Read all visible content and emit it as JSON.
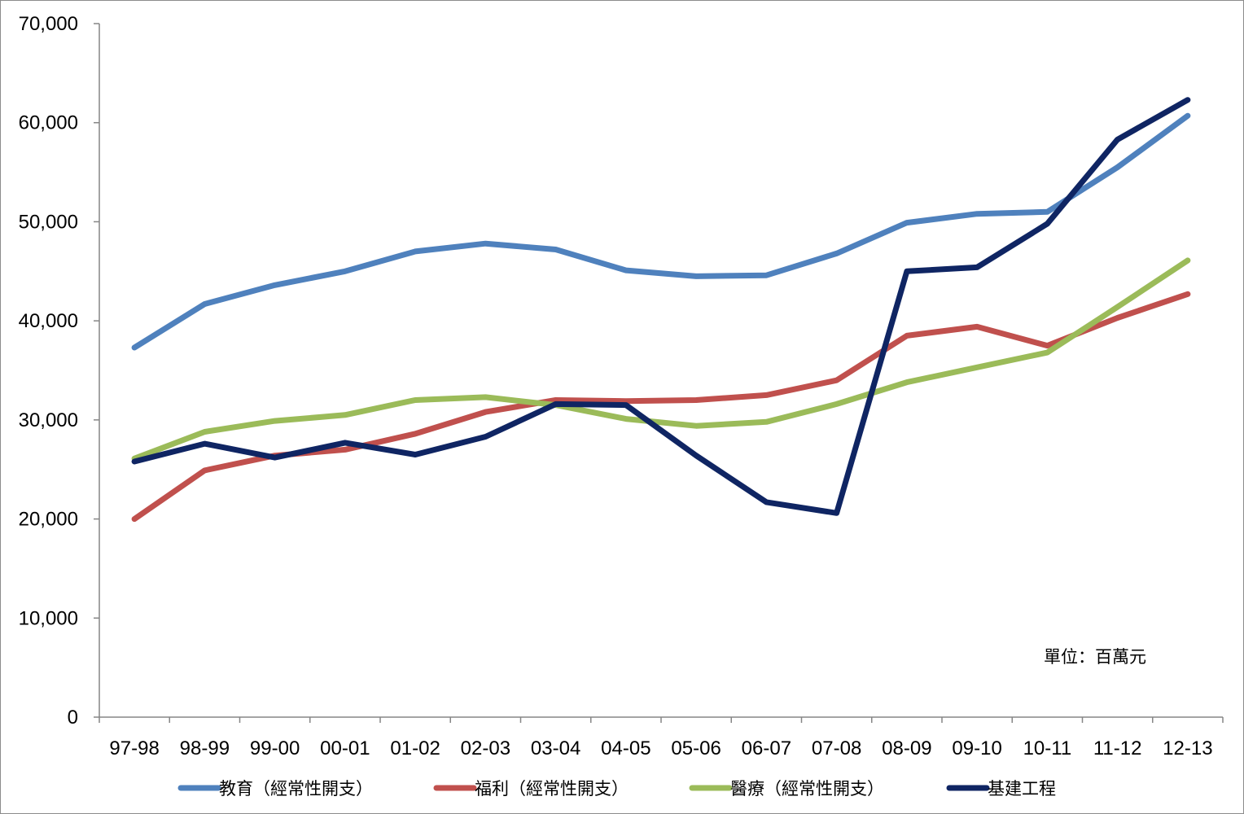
{
  "chart_data": {
    "type": "line",
    "title": "",
    "xlabel": "",
    "ylabel": "",
    "unit_note": "單位：百萬元",
    "categories": [
      "97-98",
      "98-99",
      "99-00",
      "00-01",
      "01-02",
      "02-03",
      "03-04",
      "04-05",
      "05-06",
      "06-07",
      "07-08",
      "08-09",
      "09-10",
      "10-11",
      "11-12",
      "12-13"
    ],
    "ylim": [
      0,
      70000
    ],
    "yticks": [
      0,
      10000,
      20000,
      30000,
      40000,
      50000,
      60000,
      70000
    ],
    "ytick_labels": [
      "0",
      "10,000",
      "20,000",
      "30,000",
      "40,000",
      "50,000",
      "60,000",
      "70,000"
    ],
    "grid": false,
    "legend_position": "bottom",
    "series": [
      {
        "name": "教育（經常性開支）",
        "color": "#4F81BD",
        "values": [
          37300,
          41700,
          43600,
          45000,
          47000,
          47800,
          47200,
          45100,
          44500,
          44600,
          46800,
          49900,
          50800,
          51000,
          55500,
          60700
        ]
      },
      {
        "name": "福利（經常性開支）",
        "color": "#C0504D",
        "values": [
          20000,
          24900,
          26400,
          27000,
          28600,
          30800,
          32000,
          31900,
          32000,
          32500,
          34000,
          38500,
          39400,
          37500,
          40300,
          42700
        ]
      },
      {
        "name": "醫療（經常性開支）",
        "color": "#9BBB59",
        "values": [
          26100,
          28800,
          29900,
          30500,
          32000,
          32300,
          31500,
          30100,
          29400,
          29800,
          31600,
          33800,
          35300,
          36800,
          41400,
          46100
        ]
      },
      {
        "name": "基建工程",
        "color": "#0F2563",
        "values": [
          25800,
          27600,
          26200,
          27700,
          26500,
          28300,
          31600,
          31500,
          26400,
          21700,
          20600,
          45000,
          45400,
          49800,
          58300,
          62300
        ]
      }
    ]
  }
}
